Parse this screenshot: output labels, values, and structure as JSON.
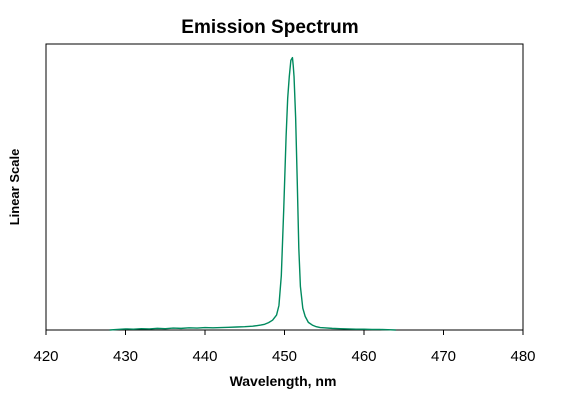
{
  "chart_data": {
    "type": "line",
    "title": "Emission Spectrum",
    "xlabel": "Wavelength, nm",
    "ylabel": "Linear Scale",
    "xlim": [
      420,
      480
    ],
    "ylim": [
      0,
      1.05
    ],
    "x_ticks": [
      "420",
      "430",
      "440",
      "450",
      "460",
      "470",
      "480"
    ],
    "y_ticks_shown": false,
    "grid": false,
    "legend": "none",
    "colors": {
      "line": "#008a5e",
      "axis": "#000000",
      "background": "#ffffff"
    },
    "series": [
      {
        "x": [
          428.0,
          429.0,
          430.0,
          431.0,
          432.0,
          433.0,
          434.0,
          435.0,
          436.0,
          437.0,
          438.0,
          439.0,
          440.0,
          441.0,
          442.0,
          443.0,
          444.0,
          445.0,
          445.5,
          446.0,
          446.5,
          447.0,
          447.5,
          448.0,
          448.5,
          449.0,
          449.3,
          449.6,
          449.9,
          450.2,
          450.4,
          450.6,
          450.8,
          451.0,
          451.1,
          451.2,
          451.4,
          451.6,
          451.8,
          452.0,
          452.3,
          452.6,
          453.0,
          453.5,
          454.0,
          454.5,
          455.0,
          456.0,
          457.0,
          458.0,
          459.0,
          460.0,
          461.0,
          462.0,
          463.0,
          464.0
        ],
        "values": [
          0.0,
          0.002,
          0.004,
          0.003,
          0.005,
          0.004,
          0.006,
          0.005,
          0.007,
          0.006,
          0.008,
          0.007,
          0.009,
          0.008,
          0.009,
          0.01,
          0.011,
          0.012,
          0.013,
          0.014,
          0.016,
          0.018,
          0.021,
          0.027,
          0.036,
          0.055,
          0.09,
          0.2,
          0.44,
          0.71,
          0.85,
          0.93,
          0.99,
          1.0,
          0.97,
          0.93,
          0.78,
          0.55,
          0.3,
          0.16,
          0.08,
          0.05,
          0.028,
          0.018,
          0.012,
          0.009,
          0.008,
          0.006,
          0.005,
          0.004,
          0.003,
          0.003,
          0.002,
          0.002,
          0.001,
          0.0
        ]
      }
    ]
  }
}
